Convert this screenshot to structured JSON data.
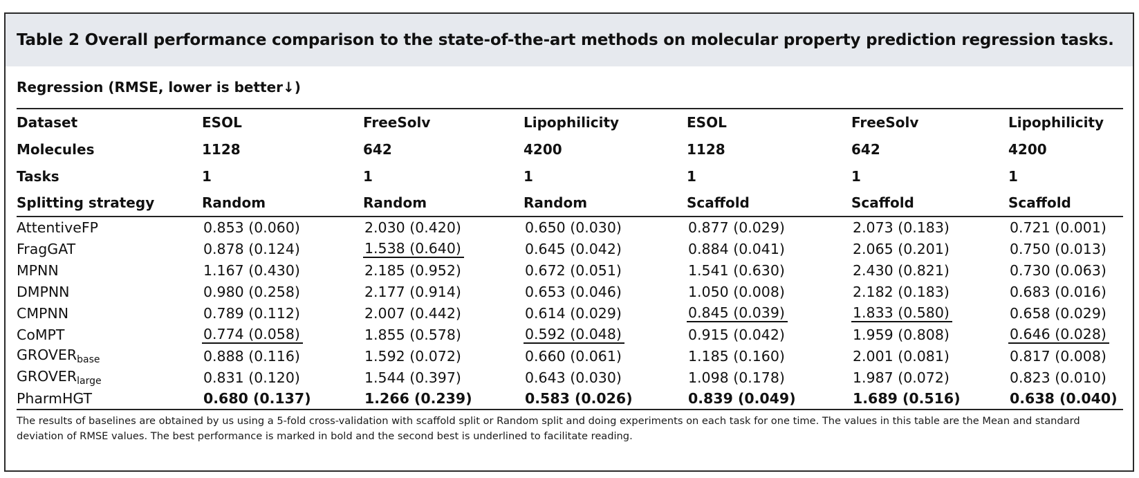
{
  "caption": "Table 2 Overall performance comparison to the state-of-the-art methods on molecular property prediction regression tasks.",
  "subheading": "Regression (RMSE, lower is better↓)",
  "header_rows": [
    {
      "label": "Dataset",
      "cells": [
        "ESOL",
        "FreeSolv",
        "Lipophilicity",
        "ESOL",
        "FreeSolv",
        "Lipophilicity"
      ]
    },
    {
      "label": "Molecules",
      "cells": [
        "1128",
        "642",
        "4200",
        "1128",
        "642",
        "4200"
      ]
    },
    {
      "label": "Tasks",
      "cells": [
        "1",
        "1",
        "1",
        "1",
        "1",
        "1"
      ]
    },
    {
      "label": "Splitting strategy",
      "cells": [
        "Random",
        "Random",
        "Random",
        "Scaffold",
        "Scaffold",
        "Scaffold"
      ]
    }
  ],
  "rows": [
    {
      "name": "AttentiveFP",
      "sub": "",
      "values": [
        "0.853 (0.060)",
        "2.030 (0.420)",
        "0.650 (0.030)",
        "0.877 (0.029)",
        "2.073 (0.183)",
        "0.721 (0.001)"
      ],
      "underline": [],
      "bold": []
    },
    {
      "name": "FragGAT",
      "sub": "",
      "values": [
        "0.878 (0.124)",
        "1.538 (0.640)",
        "0.645 (0.042)",
        "0.884 (0.041)",
        "2.065 (0.201)",
        "0.750 (0.013)"
      ],
      "underline": [
        1
      ],
      "bold": []
    },
    {
      "name": "MPNN",
      "sub": "",
      "values": [
        "1.167 (0.430)",
        "2.185 (0.952)",
        "0.672 (0.051)",
        "1.541 (0.630)",
        "2.430 (0.821)",
        "0.730 (0.063)"
      ],
      "underline": [],
      "bold": []
    },
    {
      "name": "DMPNN",
      "sub": "",
      "values": [
        "0.980 (0.258)",
        "2.177 (0.914)",
        "0.653 (0.046)",
        "1.050 (0.008)",
        "2.182 (0.183)",
        "0.683 (0.016)"
      ],
      "underline": [],
      "bold": []
    },
    {
      "name": "CMPNN",
      "sub": "",
      "values": [
        "0.789 (0.112)",
        "2.007 (0.442)",
        "0.614 (0.029)",
        "0.845 (0.039)",
        "1.833 (0.580)",
        "0.658 (0.029)"
      ],
      "underline": [
        3,
        4
      ],
      "bold": []
    },
    {
      "name": "CoMPT",
      "sub": "",
      "values": [
        "0.774 (0.058)",
        "1.855 (0.578)",
        "0.592 (0.048)",
        "0.915 (0.042)",
        "1.959 (0.808)",
        "0.646 (0.028)"
      ],
      "underline": [
        0,
        2,
        5
      ],
      "bold": []
    },
    {
      "name": "GROVER",
      "sub": "base",
      "values": [
        "0.888 (0.116)",
        "1.592 (0.072)",
        "0.660 (0.061)",
        "1.185 (0.160)",
        "2.001 (0.081)",
        "0.817 (0.008)"
      ],
      "underline": [],
      "bold": []
    },
    {
      "name": "GROVER",
      "sub": "large",
      "values": [
        "0.831 (0.120)",
        "1.544 (0.397)",
        "0.643 (0.030)",
        "1.098 (0.178)",
        "1.987 (0.072)",
        "0.823 (0.010)"
      ],
      "underline": [],
      "bold": []
    },
    {
      "name": "PharmHGT",
      "sub": "",
      "values": [
        "0.680 (0.137)",
        "1.266 (0.239)",
        "0.583 (0.026)",
        "0.839 (0.049)",
        "1.689 (0.516)",
        "0.638 (0.040)"
      ],
      "underline": [],
      "bold": [
        0,
        1,
        2,
        3,
        4,
        5
      ]
    }
  ],
  "footnote": "The results of baselines are obtained by us using a 5-fold cross-validation with scaffold split or Random split and doing experiments on each task for one time. The values in this table are the Mean and standard deviation of RMSE values. The best performance is marked in bold and the second best is underlined to facilitate reading."
}
